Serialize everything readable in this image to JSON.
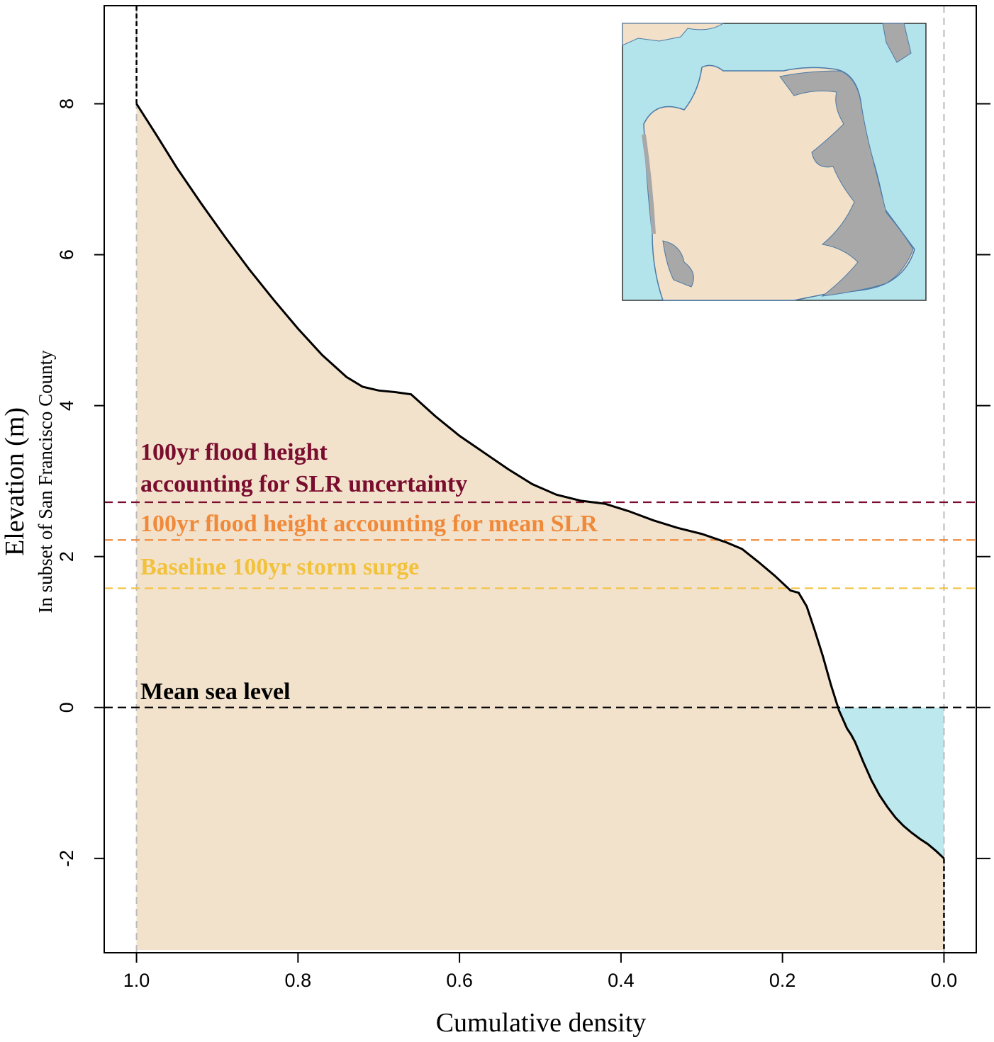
{
  "chart_data": {
    "type": "area",
    "xlabel": "Cumulative density",
    "ylabel": "Elevation (m)",
    "ylabel_sub": "In subset of San Francisco County",
    "xlim": [
      1.04,
      -0.04
    ],
    "ylim": [
      -3.25,
      9.3
    ],
    "x_reversed": true,
    "x_ticks": [
      1.0,
      0.8,
      0.6,
      0.4,
      0.2,
      0.0
    ],
    "x_tick_labels": [
      "1.0",
      "0.8",
      "0.6",
      "0.4",
      "0.2",
      "0.0"
    ],
    "y_ticks": [
      -2,
      0,
      2,
      4,
      6,
      8
    ],
    "y_tick_labels": [
      "-2",
      "0",
      "2",
      "4",
      "6",
      "8"
    ],
    "grid": false,
    "curve": {
      "x": [
        1.0,
        0.975,
        0.95,
        0.92,
        0.89,
        0.86,
        0.83,
        0.8,
        0.77,
        0.74,
        0.72,
        0.7,
        0.68,
        0.66,
        0.63,
        0.6,
        0.57,
        0.54,
        0.51,
        0.48,
        0.45,
        0.42,
        0.39,
        0.36,
        0.33,
        0.3,
        0.27,
        0.25,
        0.23,
        0.21,
        0.19,
        0.18,
        0.17,
        0.16,
        0.15,
        0.14,
        0.13,
        0.12,
        0.115,
        0.11,
        0.1,
        0.09,
        0.08,
        0.07,
        0.06,
        0.05,
        0.04,
        0.03,
        0.02,
        0.01,
        0.0
      ],
      "y": [
        8.0,
        7.58,
        7.15,
        6.68,
        6.23,
        5.8,
        5.4,
        5.02,
        4.67,
        4.38,
        4.25,
        4.2,
        4.18,
        4.15,
        3.86,
        3.6,
        3.38,
        3.16,
        2.96,
        2.82,
        2.74,
        2.7,
        2.6,
        2.48,
        2.38,
        2.3,
        2.19,
        2.1,
        1.93,
        1.75,
        1.55,
        1.52,
        1.34,
        1.02,
        0.68,
        0.3,
        -0.04,
        -0.28,
        -0.36,
        -0.46,
        -0.72,
        -0.96,
        -1.16,
        -1.32,
        -1.46,
        -1.57,
        -1.66,
        -1.74,
        -1.81,
        -1.9,
        -2.0
      ]
    },
    "sea_level": 0,
    "reference_lines": [
      {
        "y": 2.72,
        "color": "#7a0c2e"
      },
      {
        "y": 2.22,
        "color": "#f08a3a"
      },
      {
        "y": 1.58,
        "color": "#f2c23c"
      },
      {
        "y": 0,
        "color": "#000000"
      }
    ],
    "vertical_lines": [
      1.0,
      0.0
    ],
    "annotations": [
      {
        "text": "100yr flood height",
        "color": "#7a0c2e"
      },
      {
        "text": "accounting for SLR uncertainty",
        "color": "#7a0c2e"
      },
      {
        "text": "100yr flood height accounting for mean SLR",
        "color": "#f08a3a"
      },
      {
        "text": "Baseline 100yr storm surge",
        "color": "#f2c23c"
      },
      {
        "text": "Mean sea level",
        "color": "#000000"
      }
    ],
    "colors": {
      "land": "#f2e2cc",
      "water": "#bde8ee",
      "curve": "#000000",
      "inset_water": "#b3e3eb",
      "inset_land": "#f2e0c8",
      "inset_flood": "#a8a8a8"
    }
  }
}
